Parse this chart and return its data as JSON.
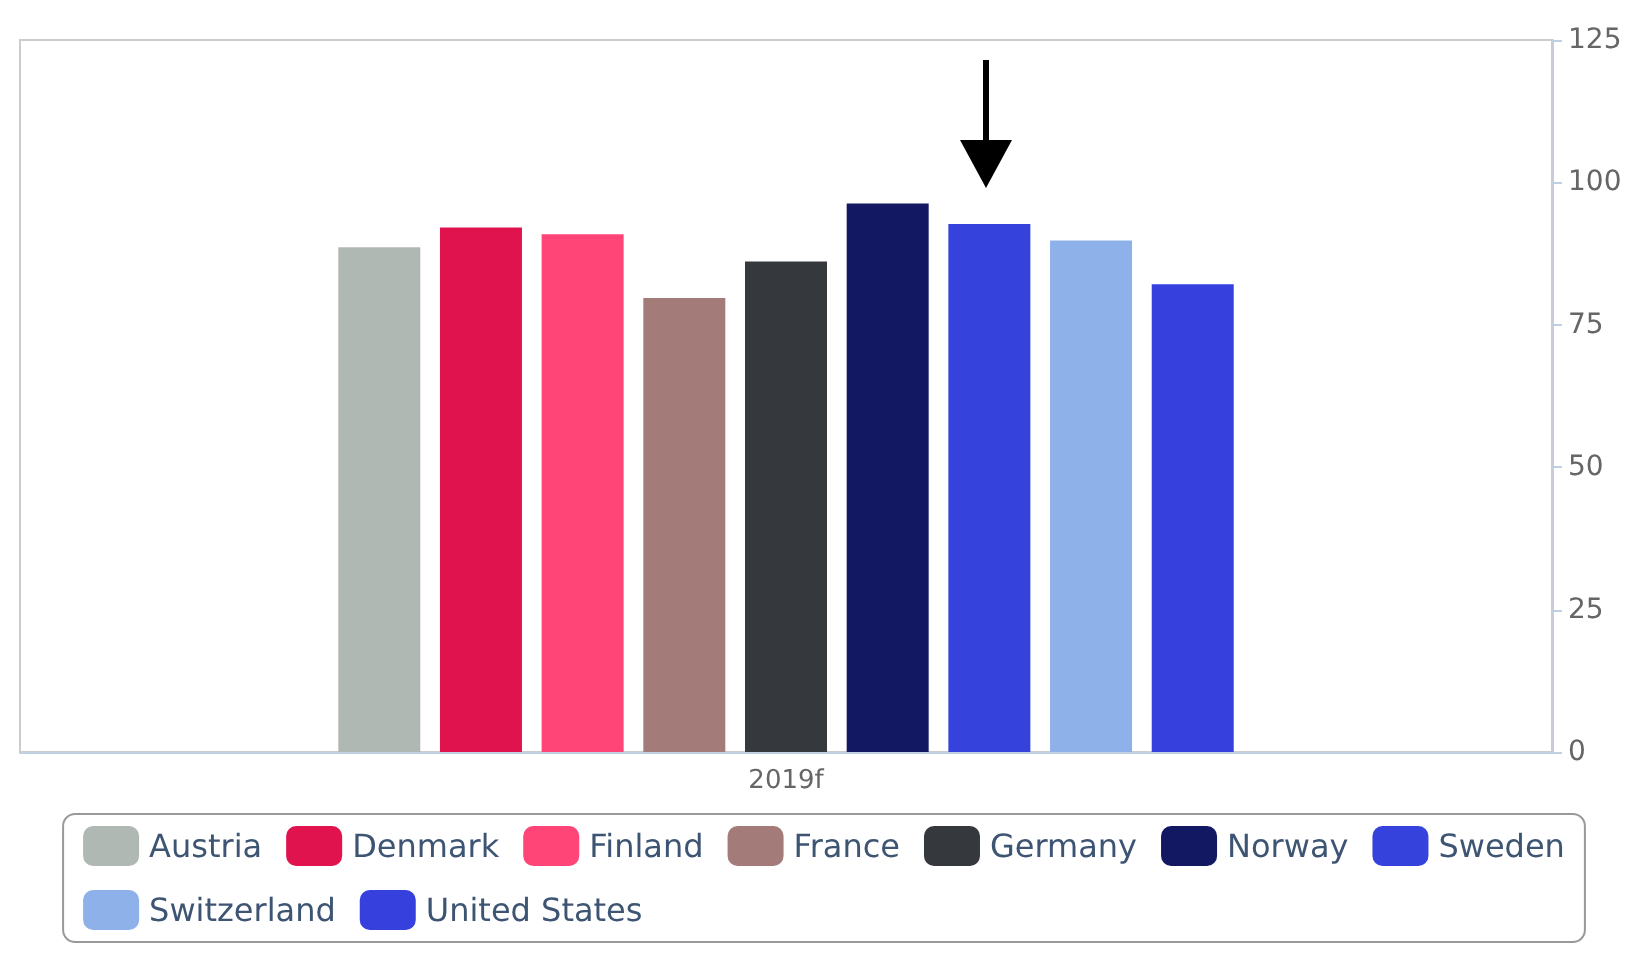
{
  "chart_data": {
    "type": "bar",
    "categories": [
      "2019f"
    ],
    "series": [
      {
        "name": "Austria",
        "color": "#b0b8b4",
        "values": [
          88.6
        ]
      },
      {
        "name": "Denmark",
        "color": "#e0134f",
        "values": [
          92.1
        ]
      },
      {
        "name": "Finland",
        "color": "#ff4477",
        "values": [
          90.9
        ]
      },
      {
        "name": "France",
        "color": "#a37c7a",
        "values": [
          79.7
        ]
      },
      {
        "name": "Germany",
        "color": "#35383d",
        "values": [
          86.1
        ]
      },
      {
        "name": "Norway",
        "color": "#121962",
        "values": [
          96.3
        ]
      },
      {
        "name": "Sweden",
        "color": "#3642dc",
        "values": [
          92.7
        ]
      },
      {
        "name": "Switzerland",
        "color": "#8db1e8",
        "values": [
          89.8
        ]
      },
      {
        "name": "United States",
        "color": "#3640dc",
        "values": [
          82.1
        ]
      }
    ],
    "ylim": [
      0,
      125
    ],
    "yticks": [
      0,
      25,
      50,
      75,
      100,
      125
    ],
    "grid": false,
    "legend": "bottom"
  }
}
